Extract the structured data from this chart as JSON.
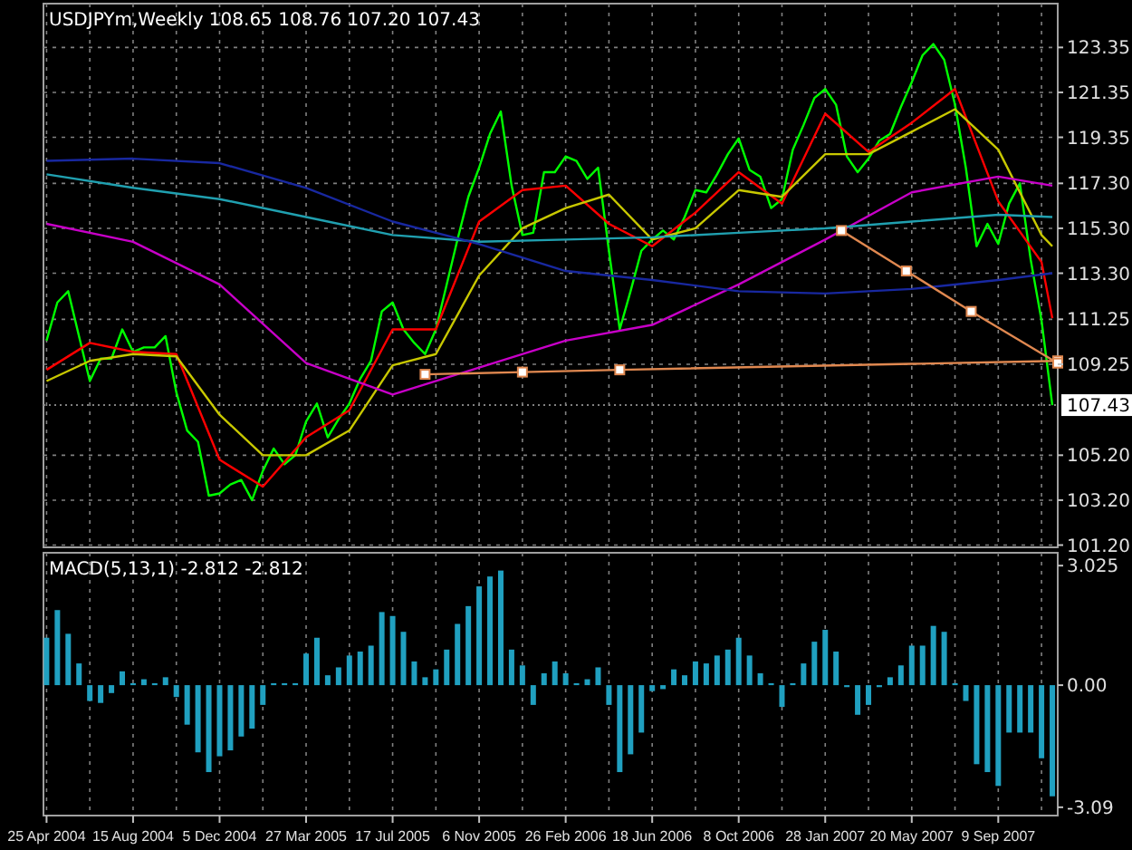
{
  "chart_data": [
    {
      "type": "line",
      "title": "USDJPYm,Weekly 108.65 108.76 107.20 107.43",
      "xlim": [
        "2004-04-21",
        "2007-11-25"
      ],
      "xticks": [
        {
          "value": "2004-04-25",
          "label": null
        },
        {
          "value": "2004-06-20",
          "label": null
        },
        {
          "value": "2004-08-15",
          "label": null
        },
        {
          "value": "2004-10-10",
          "label": null
        },
        {
          "value": "2004-12-05",
          "label": null
        },
        {
          "value": "2005-01-30",
          "label": null
        },
        {
          "value": "2005-03-27",
          "label": null
        },
        {
          "value": "2005-05-22",
          "label": null
        },
        {
          "value": "2005-07-17",
          "label": null
        },
        {
          "value": "2005-09-11",
          "label": null
        },
        {
          "value": "2005-11-06",
          "label": null
        },
        {
          "value": "2006-01-01",
          "label": null
        },
        {
          "value": "2006-02-26",
          "label": null
        },
        {
          "value": "2006-04-23",
          "label": null
        },
        {
          "value": "2006-06-18",
          "label": null
        },
        {
          "value": "2006-08-13",
          "label": null
        },
        {
          "value": "2006-10-08",
          "label": null
        },
        {
          "value": "2006-12-03",
          "label": null
        },
        {
          "value": "2007-01-28",
          "label": null
        },
        {
          "value": "2007-03-25",
          "label": null
        },
        {
          "value": "2007-05-20",
          "label": null
        },
        {
          "value": "2007-07-15",
          "label": null
        },
        {
          "value": "2007-09-09",
          "label": null
        },
        {
          "value": "2007-11-04",
          "label": null
        }
      ],
      "ylim": [
        101.1,
        125.3
      ],
      "yticks": [
        {
          "value": 101.2,
          "label": "101.20"
        },
        {
          "value": 103.2,
          "label": "103.20"
        },
        {
          "value": 105.2,
          "label": "105.20"
        },
        {
          "value": 109.25,
          "label": "109.25"
        },
        {
          "value": 111.25,
          "label": "111.25"
        },
        {
          "value": 113.3,
          "label": "113.30"
        },
        {
          "value": 115.3,
          "label": "115.30"
        },
        {
          "value": 117.3,
          "label": "117.30"
        },
        {
          "value": 119.35,
          "label": "119.35"
        },
        {
          "value": 121.35,
          "label": "121.35"
        },
        {
          "value": 123.35,
          "label": "123.35"
        }
      ],
      "grid": true,
      "tick_labels": "y",
      "ref_lines": [
        {
          "axis": "y",
          "value": 107.43,
          "label": "107.43",
          "color": "#808080",
          "line_style": "dotted"
        }
      ],
      "series": [
        {
          "color": "#00ff00",
          "x": [
            "2004-04-25",
            "2004-05-09",
            "2004-05-23",
            "2004-06-06",
            "2004-06-20",
            "2004-07-04",
            "2004-07-18",
            "2004-08-01",
            "2004-08-15",
            "2004-08-29",
            "2004-09-12",
            "2004-09-26",
            "2004-10-10",
            "2004-10-24",
            "2004-11-07",
            "2004-11-21",
            "2004-12-05",
            "2004-12-19",
            "2005-01-02",
            "2005-01-16",
            "2005-01-30",
            "2005-02-13",
            "2005-02-27",
            "2005-03-13",
            "2005-03-27",
            "2005-04-10",
            "2005-04-24",
            "2005-05-08",
            "2005-05-22",
            "2005-06-05",
            "2005-06-19",
            "2005-07-03",
            "2005-07-17",
            "2005-07-31",
            "2005-08-14",
            "2005-08-28",
            "2005-09-11",
            "2005-09-25",
            "2005-10-09",
            "2005-10-23",
            "2005-11-06",
            "2005-11-20",
            "2005-12-04",
            "2005-12-18",
            "2006-01-01",
            "2006-01-15",
            "2006-01-29",
            "2006-02-12",
            "2006-02-26",
            "2006-03-12",
            "2006-03-26",
            "2006-04-09",
            "2006-04-23",
            "2006-05-07",
            "2006-05-21",
            "2006-06-04",
            "2006-06-18",
            "2006-07-02",
            "2006-07-16",
            "2006-07-30",
            "2006-08-13",
            "2006-08-27",
            "2006-09-10",
            "2006-09-24",
            "2006-10-08",
            "2006-10-22",
            "2006-11-05",
            "2006-11-19",
            "2006-12-03",
            "2006-12-17",
            "2006-12-31",
            "2007-01-14",
            "2007-01-28",
            "2007-02-11",
            "2007-02-25",
            "2007-03-11",
            "2007-03-25",
            "2007-04-08",
            "2007-04-22",
            "2007-05-06",
            "2007-05-20",
            "2007-06-03",
            "2007-06-17",
            "2007-07-01",
            "2007-07-15",
            "2007-07-29",
            "2007-08-12",
            "2007-08-26",
            "2007-09-09",
            "2007-09-23",
            "2007-10-07",
            "2007-10-21",
            "2007-11-04",
            "2007-11-18"
          ],
          "values": [
            110.3,
            112,
            112.5,
            110.5,
            108.5,
            109.5,
            109.5,
            110.8,
            109.8,
            110,
            110,
            110.5,
            108,
            106.3,
            105.8,
            103.4,
            103.5,
            103.9,
            104.1,
            103.2,
            104.5,
            105.5,
            104.8,
            105.2,
            106.7,
            107.5,
            106,
            106.8,
            107.5,
            108.6,
            109.4,
            111.6,
            112,
            110.8,
            110.2,
            109.7,
            110.8,
            112.8,
            114.8,
            116.7,
            118,
            119.5,
            120.5,
            117.2,
            115,
            115.1,
            117.8,
            117.8,
            118.5,
            118.3,
            117.5,
            118,
            114.3,
            110.8,
            112.5,
            114.3,
            114.8,
            115.2,
            114.8,
            115.8,
            117,
            116.9,
            117.7,
            118.6,
            119.3,
            117.9,
            117.6,
            116.2,
            116.6,
            118.8,
            119.9,
            121.1,
            121.5,
            120.8,
            118.5,
            117.8,
            118.4,
            119.2,
            119.5,
            120.7,
            121.8,
            123,
            123.5,
            122.8,
            120.8,
            118,
            114.5,
            115.5,
            114.6,
            116.4,
            117.3,
            113.9,
            111.2,
            107.43
          ]
        },
        {
          "color": "#ff0000",
          "x": [
            "2004-04-25",
            "2004-06-20",
            "2004-08-15",
            "2004-10-10",
            "2004-12-05",
            "2005-01-30",
            "2005-03-27",
            "2005-05-22",
            "2005-07-17",
            "2005-09-11",
            "2005-11-06",
            "2006-01-01",
            "2006-02-26",
            "2006-04-23",
            "2006-06-18",
            "2006-08-13",
            "2006-10-08",
            "2006-12-03",
            "2007-01-28",
            "2007-03-25",
            "2007-05-20",
            "2007-07-15",
            "2007-09-09",
            "2007-11-04",
            "2007-11-18"
          ],
          "values": [
            109,
            110.2,
            109.8,
            109.7,
            105,
            103.8,
            106,
            107.2,
            110.8,
            110.8,
            115.6,
            117,
            117.2,
            115.5,
            114.5,
            116,
            117.8,
            116.4,
            120.4,
            118.7,
            120,
            121.5,
            116.5,
            113.8,
            111.3
          ]
        },
        {
          "color": "#c8c800",
          "x": [
            "2004-04-25",
            "2004-06-20",
            "2004-08-15",
            "2004-10-10",
            "2004-12-05",
            "2005-01-30",
            "2005-03-27",
            "2005-05-22",
            "2005-07-17",
            "2005-09-11",
            "2005-11-06",
            "2006-01-01",
            "2006-02-26",
            "2006-04-23",
            "2006-06-18",
            "2006-08-13",
            "2006-10-08",
            "2006-12-03",
            "2007-01-28",
            "2007-03-25",
            "2007-05-20",
            "2007-07-15",
            "2007-09-09",
            "2007-11-04",
            "2007-11-18"
          ],
          "values": [
            108.5,
            109.4,
            109.7,
            109.6,
            107,
            105.2,
            105.2,
            106.3,
            109.2,
            109.7,
            113.2,
            115.3,
            116.2,
            116.8,
            114.8,
            115.3,
            117,
            116.7,
            118.6,
            118.6,
            119.6,
            120.6,
            118.8,
            115,
            114.5
          ]
        },
        {
          "color": "#c800c8",
          "x": [
            "2004-04-25",
            "2004-08-15",
            "2004-12-05",
            "2005-03-27",
            "2005-07-17",
            "2005-11-06",
            "2006-02-26",
            "2006-06-18",
            "2006-10-08",
            "2007-01-28",
            "2007-05-20",
            "2007-09-09",
            "2007-11-18"
          ],
          "values": [
            115.5,
            114.7,
            112.8,
            109.3,
            107.9,
            109.1,
            110.3,
            111,
            112.8,
            114.8,
            116.9,
            117.6,
            117.2
          ]
        },
        {
          "color": "#20a0b0",
          "x": [
            "2004-04-25",
            "2004-08-15",
            "2004-12-05",
            "2005-03-27",
            "2005-07-17",
            "2005-11-06",
            "2006-02-26",
            "2006-06-18",
            "2006-10-08",
            "2007-01-28",
            "2007-05-20",
            "2007-09-09",
            "2007-11-18"
          ],
          "values": [
            117.7,
            117.1,
            116.6,
            115.8,
            115,
            114.7,
            114.8,
            114.9,
            115.1,
            115.3,
            115.6,
            115.9,
            115.8
          ]
        },
        {
          "color": "#1828a0",
          "x": [
            "2004-04-25",
            "2004-08-15",
            "2004-12-05",
            "2005-03-27",
            "2005-07-17",
            "2005-11-06",
            "2006-02-26",
            "2006-06-18",
            "2006-10-08",
            "2007-01-28",
            "2007-05-20",
            "2007-09-09",
            "2007-11-18"
          ],
          "values": [
            118.3,
            118.4,
            118.2,
            117.1,
            115.6,
            114.6,
            113.4,
            113,
            112.5,
            112.4,
            112.6,
            113,
            113.3
          ]
        },
        {
          "color": "#e08850",
          "marker": "square",
          "x": [
            "2005-08-28",
            "2006-01-01",
            "2006-05-07",
            "2007-11-25"
          ],
          "values": [
            108.8,
            108.9,
            109,
            109.4
          ]
        },
        {
          "color": "#e08850",
          "marker": "square",
          "x": [
            "2007-02-18",
            "2007-05-13",
            "2007-08-05",
            "2007-11-25"
          ],
          "values": [
            115.2,
            113.4,
            111.6,
            109.3
          ]
        }
      ]
    },
    {
      "type": "bar",
      "title": "MACD(5,13,1) -2.812 -2.812",
      "xlim": [
        "2004-04-21",
        "2007-11-25"
      ],
      "xticks": [
        {
          "value": "2004-04-25",
          "label": "25 Apr 2004"
        },
        {
          "value": "2004-06-20",
          "label": null
        },
        {
          "value": "2004-08-15",
          "label": "15 Aug 2004"
        },
        {
          "value": "2004-10-10",
          "label": null
        },
        {
          "value": "2004-12-05",
          "label": "5 Dec 2004"
        },
        {
          "value": "2005-01-30",
          "label": null
        },
        {
          "value": "2005-03-27",
          "label": "27 Mar 2005"
        },
        {
          "value": "2005-05-22",
          "label": null
        },
        {
          "value": "2005-07-17",
          "label": "17 Jul 2005"
        },
        {
          "value": "2005-09-11",
          "label": null
        },
        {
          "value": "2005-11-06",
          "label": "6 Nov 2005"
        },
        {
          "value": "2006-01-01",
          "label": null
        },
        {
          "value": "2006-02-26",
          "label": "26 Feb 2006"
        },
        {
          "value": "2006-04-23",
          "label": null
        },
        {
          "value": "2006-06-18",
          "label": "18 Jun 2006"
        },
        {
          "value": "2006-08-13",
          "label": null
        },
        {
          "value": "2006-10-08",
          "label": "8 Oct 2006"
        },
        {
          "value": "2006-12-03",
          "label": null
        },
        {
          "value": "2007-01-28",
          "label": "28 Jan 2007"
        },
        {
          "value": "2007-03-25",
          "label": null
        },
        {
          "value": "2007-05-20",
          "label": "20 May 2007"
        },
        {
          "value": "2007-07-15",
          "label": null
        },
        {
          "value": "2007-09-09",
          "label": "9 Sep 2007"
        },
        {
          "value": "2007-11-04",
          "label": null
        }
      ],
      "ylim": [
        -3.3,
        3.35
      ],
      "yticks": [
        {
          "value": -3.09,
          "label": "-3.09"
        },
        {
          "value": 0,
          "label": "0.00"
        },
        {
          "value": 3.025,
          "label": "3.025"
        }
      ],
      "grid": "x",
      "x": [
        "2004-04-25",
        "2004-05-09",
        "2004-05-23",
        "2004-06-06",
        "2004-06-20",
        "2004-07-04",
        "2004-07-18",
        "2004-08-01",
        "2004-08-15",
        "2004-08-29",
        "2004-09-12",
        "2004-09-26",
        "2004-10-10",
        "2004-10-24",
        "2004-11-07",
        "2004-11-21",
        "2004-12-05",
        "2004-12-19",
        "2005-01-02",
        "2005-01-16",
        "2005-01-30",
        "2005-02-13",
        "2005-02-27",
        "2005-03-13",
        "2005-03-27",
        "2005-04-10",
        "2005-04-24",
        "2005-05-08",
        "2005-05-22",
        "2005-06-05",
        "2005-06-19",
        "2005-07-03",
        "2005-07-17",
        "2005-07-31",
        "2005-08-14",
        "2005-08-28",
        "2005-09-11",
        "2005-09-25",
        "2005-10-09",
        "2005-10-23",
        "2005-11-06",
        "2005-11-20",
        "2005-12-04",
        "2005-12-18",
        "2006-01-01",
        "2006-01-15",
        "2006-01-29",
        "2006-02-12",
        "2006-02-26",
        "2006-03-12",
        "2006-03-26",
        "2006-04-09",
        "2006-04-23",
        "2006-05-07",
        "2006-05-21",
        "2006-06-04",
        "2006-06-18",
        "2006-07-02",
        "2006-07-16",
        "2006-07-30",
        "2006-08-13",
        "2006-08-27",
        "2006-09-10",
        "2006-09-24",
        "2006-10-08",
        "2006-10-22",
        "2006-11-05",
        "2006-11-19",
        "2006-12-03",
        "2006-12-17",
        "2006-12-31",
        "2007-01-14",
        "2007-01-28",
        "2007-02-11",
        "2007-02-25",
        "2007-03-11",
        "2007-03-25",
        "2007-04-08",
        "2007-04-22",
        "2007-05-06",
        "2007-05-20",
        "2007-06-03",
        "2007-06-17",
        "2007-07-01",
        "2007-07-15",
        "2007-07-29",
        "2007-08-12",
        "2007-08-26",
        "2007-09-09",
        "2007-09-23",
        "2007-10-07",
        "2007-10-21",
        "2007-11-04",
        "2007-11-18"
      ],
      "color": "#20a0c0",
      "values": [
        1.2,
        1.9,
        1.3,
        0.55,
        -0.4,
        -0.45,
        -0.2,
        0.35,
        0.05,
        0.15,
        0.05,
        0.2,
        -0.3,
        -1,
        -1.7,
        -2.2,
        -1.8,
        -1.65,
        -1.3,
        -1.1,
        -0.5,
        0.05,
        0.05,
        0.05,
        0.8,
        1.2,
        0.25,
        0.45,
        0.75,
        0.85,
        1,
        1.85,
        1.75,
        1.35,
        0.6,
        0.2,
        0.4,
        0.9,
        1.55,
        2,
        2.5,
        2.75,
        2.9,
        0.9,
        0.5,
        -0.5,
        0.3,
        0.6,
        0.3,
        0.05,
        0.15,
        0.45,
        -0.5,
        -2.2,
        -1.75,
        -1.2,
        -0.15,
        -0.1,
        0.4,
        0.25,
        0.6,
        0.55,
        0.75,
        0.9,
        1.2,
        0.75,
        0.3,
        0.05,
        -0.55,
        0.05,
        0.55,
        1.1,
        1.4,
        0.85,
        -0.05,
        -0.75,
        -0.5,
        -0.05,
        0.2,
        0.5,
        1,
        1,
        1.5,
        1.35,
        0.05,
        -0.4,
        -2,
        -2.2,
        -2.55,
        -1.2,
        -1.2,
        -1.2,
        -1.85,
        -2.812
      ]
    }
  ]
}
